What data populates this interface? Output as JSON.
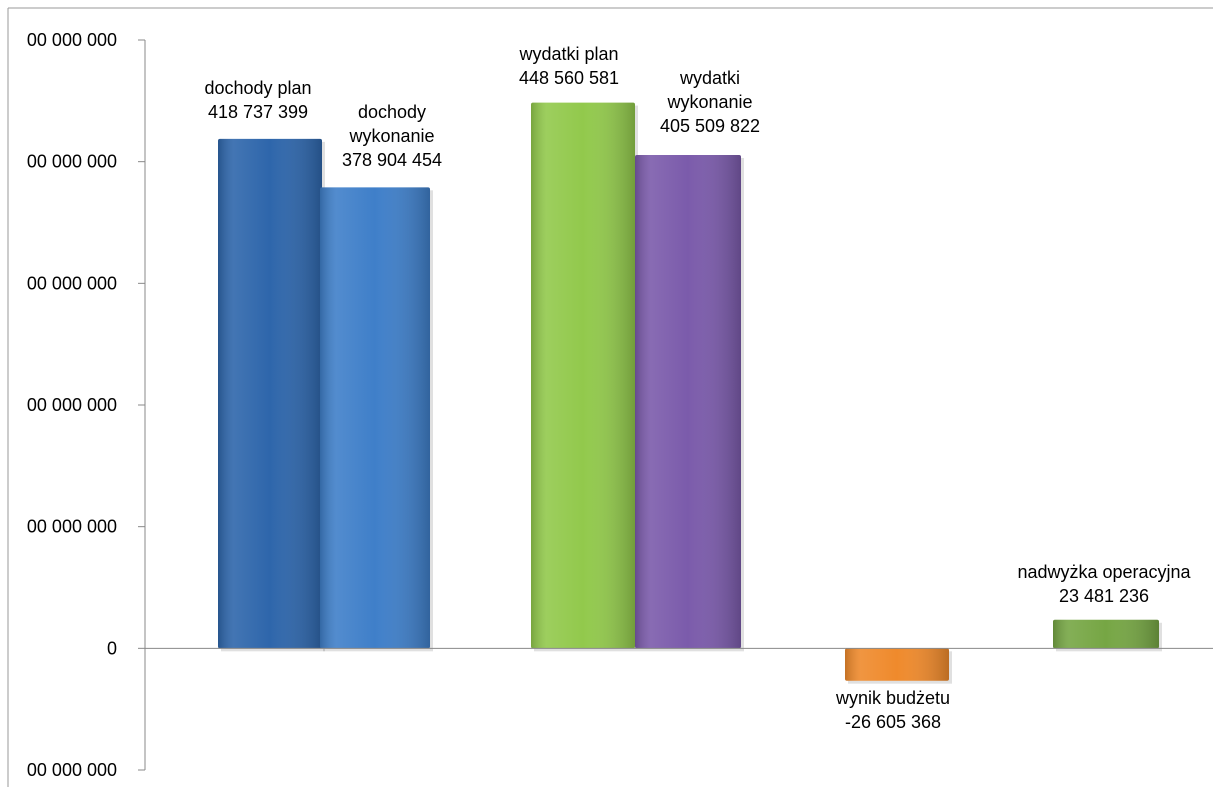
{
  "chart_data": {
    "type": "bar",
    "title": "",
    "xlabel": "",
    "ylabel": "",
    "ylim": [
      -100000000,
      500000000
    ],
    "yticks": [
      -100000000,
      0,
      100000000,
      200000000,
      300000000,
      400000000,
      500000000
    ],
    "ytick_labels": [
      "00 000 000",
      "0",
      "00 000 000",
      "00 000 000",
      "00 000 000",
      "00 000 000",
      "00 000 000"
    ],
    "bars": [
      {
        "label_lines": [
          "dochody plan",
          "418 737 399"
        ],
        "value": 418737399,
        "color": "#2e66ab"
      },
      {
        "label_lines": [
          "dochody",
          "wykonanie",
          "378 904 454"
        ],
        "value": 378904454,
        "color": "#3f7fc9"
      },
      {
        "label_lines": [
          "wydatki plan",
          "448 560 581"
        ],
        "value": 448560581,
        "color": "#92c94c"
      },
      {
        "label_lines": [
          "wydatki",
          "wykonanie",
          "405 509 822"
        ],
        "value": 405509822,
        "color": "#7b5bab"
      },
      {
        "label_lines": [
          "wynik budżetu",
          "-26 605 368"
        ],
        "value": -26605368,
        "color": "#ef8a2c"
      },
      {
        "label_lines": [
          "nadwyżka operacyjna",
          "23 481 236"
        ],
        "value": 23481236,
        "color": "#76a644"
      }
    ],
    "grid": false,
    "legend": "none"
  }
}
